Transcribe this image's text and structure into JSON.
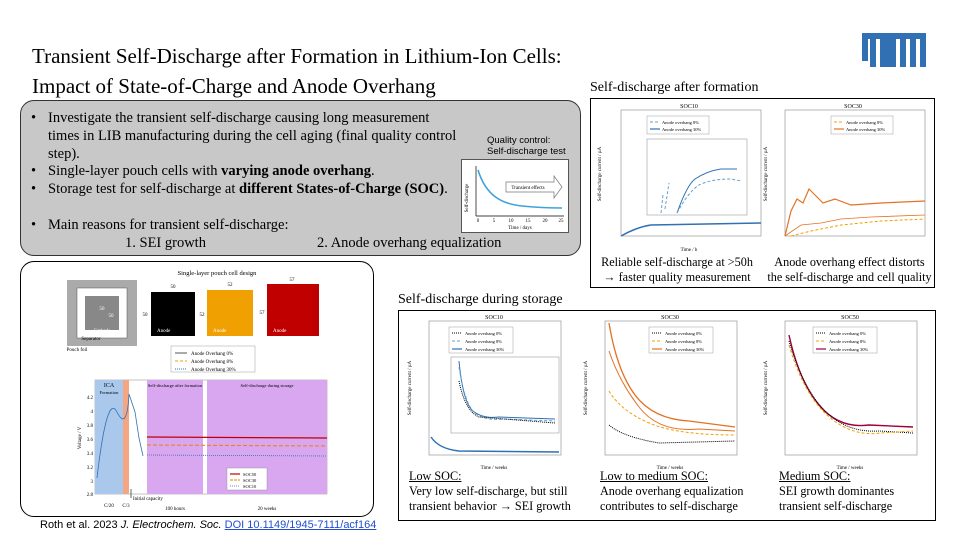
{
  "title": {
    "line1": "Transient Self-Discharge  after Formation in Lithium-Ion Cells:",
    "line2": "Impact  of State-of-Charge  and Anode Overhang"
  },
  "logo_text": "TUM",
  "bullets": {
    "b1": "Investigate the transient self-discharge causing long measurement times in LIB manufacturing during the cell aging (final quality control step).",
    "b2_pre": "Single-layer pouch cells with ",
    "b2_bold": "varying anode overhang",
    "b2_post": ".",
    "b3_pre": "Storage test for self-discharge at ",
    "b3_bold": "different States-of-Charge (SOC)",
    "b3_post": ".",
    "b4": "Main reasons for transient self-discharge:",
    "reason1": "1. SEI growth",
    "reason2": "2. Anode overhang equalization"
  },
  "qc_inset": {
    "heading_l1": "Quality control:",
    "heading_l2": "Self-discharge test",
    "ylabel": "Self-discharge",
    "xlabel": "Time / days",
    "arrow_label": "Transient effects",
    "ticks": [
      "0",
      "5",
      "10",
      "15",
      "20",
      "25"
    ]
  },
  "formation_section": {
    "heading": "Self-discharge after formation",
    "caption_left_l1": "Reliable self-discharge at >50h",
    "caption_left_l2": "→ faster quality measurement",
    "caption_right_l1": "Anode overhang effect distorts",
    "caption_right_l2": "the self-discharge and cell quality",
    "soc10_title": "SOC10",
    "soc30_title": "SOC30",
    "legend_8": "Anode overhang 8%",
    "legend_30": "Anode overhang 30%",
    "ylabel": "Self-discharge current / µA",
    "xlabel": "Time / h"
  },
  "storage_section": {
    "heading": "Self-discharge during storage",
    "panels": [
      {
        "title": "SOC10",
        "cap_head": "Low SOC:",
        "cap_l1": "Very low self-discharge, but still",
        "cap_l2": "transient behavior → SEI growth"
      },
      {
        "title": "SOC30",
        "cap_head": "Low to medium SOC:",
        "cap_l1": "Anode overhang equalization",
        "cap_l2": "contributes to self-discharge"
      },
      {
        "title": "SOC50",
        "cap_head": "Medium SOC:",
        "cap_l1": "SEI growth dominantes",
        "cap_l2": "transient self-discharge"
      }
    ],
    "legend_0": "Anode overhang 0%",
    "legend_8": "Anode overhang 8%",
    "legend_30": "Anode overhang 30%",
    "ylabel": "Self-discharge current / µA",
    "xlabel": "Time / weeks"
  },
  "cell_design": {
    "title": "Single-layer pouch cell design",
    "cathode": "Cathode",
    "separator": "Separator",
    "pouch": "Pouch foil",
    "dims": [
      "50",
      "50",
      "50",
      "52",
      "52",
      "57",
      "57",
      "50"
    ],
    "anode_labels": [
      "Anode",
      "Anode",
      "Anode"
    ],
    "legend": [
      "Anode Overhang 0%",
      "Anode Overhang 8%",
      "Anode Overhang 30%"
    ],
    "phase_labels": [
      "ICA",
      "Formation",
      "Self-discharge after formation",
      "Self-discharge during storage"
    ],
    "ylabel": "Voltage / V",
    "yticks": [
      "4.2",
      "4",
      "3.8",
      "3.6",
      "3.4",
      "3.2",
      "3",
      "2.8"
    ],
    "xlabels": [
      "C/20",
      "C/3",
      "100 hours",
      "20 weeks"
    ],
    "initial_capacity": "Initial capacity",
    "soc_legend": [
      "SOC50",
      "SOC30",
      "SOC10"
    ]
  },
  "citation": {
    "authors": "Roth et al. 2023 ",
    "journal": "J. Electrochem. Soc.",
    "doi": "DOI 10.1149/1945-7111/acf164"
  },
  "colors": {
    "tum_blue": "#3070b3",
    "light_blue": "#64a0c8",
    "orange": "#e37222",
    "dark_red": "#a2ad00",
    "panel_gray": "#c8c8c8"
  }
}
